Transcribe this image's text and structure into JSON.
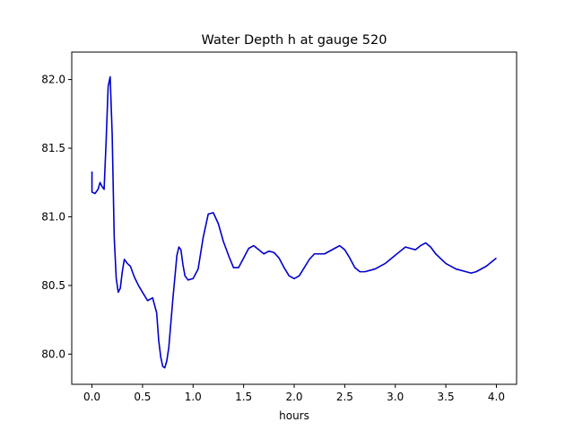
{
  "chart_data": {
    "type": "line",
    "title": "Water Depth h at gauge 520",
    "xlabel": "hours",
    "ylabel": "",
    "xlim": [
      -0.2,
      4.2
    ],
    "ylim": [
      79.78,
      82.2
    ],
    "xticks": [
      0.0,
      0.5,
      1.0,
      1.5,
      2.0,
      2.5,
      3.0,
      3.5,
      4.0
    ],
    "xtick_labels": [
      "0.0",
      "0.5",
      "1.0",
      "1.5",
      "2.0",
      "2.5",
      "3.0",
      "3.5",
      "4.0"
    ],
    "yticks": [
      80.0,
      80.5,
      81.0,
      81.5,
      82.0
    ],
    "ytick_labels": [
      "80.0",
      "80.5",
      "81.0",
      "81.5",
      "82.0"
    ],
    "grid": false,
    "series": [
      {
        "color": "#0000cc",
        "x": [
          0.0,
          0.0,
          0.03,
          0.06,
          0.08,
          0.1,
          0.12,
          0.14,
          0.16,
          0.18,
          0.2,
          0.22,
          0.24,
          0.26,
          0.28,
          0.3,
          0.32,
          0.35,
          0.38,
          0.42,
          0.46,
          0.5,
          0.55,
          0.6,
          0.64,
          0.66,
          0.68,
          0.7,
          0.72,
          0.74,
          0.76,
          0.8,
          0.84,
          0.86,
          0.88,
          0.9,
          0.92,
          0.95,
          1.0,
          1.05,
          1.1,
          1.15,
          1.2,
          1.25,
          1.3,
          1.35,
          1.4,
          1.45,
          1.5,
          1.55,
          1.6,
          1.65,
          1.7,
          1.75,
          1.8,
          1.85,
          1.9,
          1.95,
          2.0,
          2.05,
          2.1,
          2.15,
          2.2,
          2.3,
          2.4,
          2.45,
          2.5,
          2.55,
          2.6,
          2.65,
          2.7,
          2.8,
          2.9,
          3.0,
          3.05,
          3.1,
          3.15,
          3.2,
          3.25,
          3.3,
          3.35,
          3.4,
          3.5,
          3.6,
          3.7,
          3.75,
          3.8,
          3.9,
          4.0
        ],
        "values": [
          81.33,
          81.18,
          81.17,
          81.2,
          81.25,
          81.22,
          81.2,
          81.55,
          81.95,
          82.02,
          81.6,
          80.85,
          80.55,
          80.45,
          80.48,
          80.6,
          80.69,
          80.66,
          80.64,
          80.56,
          80.5,
          80.45,
          80.39,
          80.41,
          80.3,
          80.1,
          79.98,
          79.91,
          79.9,
          79.95,
          80.05,
          80.4,
          80.72,
          80.78,
          80.76,
          80.65,
          80.57,
          80.54,
          80.55,
          80.62,
          80.85,
          81.02,
          81.03,
          80.95,
          80.82,
          80.72,
          80.63,
          80.63,
          80.7,
          80.77,
          80.79,
          80.76,
          80.73,
          80.75,
          80.74,
          80.7,
          80.63,
          80.57,
          80.55,
          80.57,
          80.63,
          80.69,
          80.73,
          80.73,
          80.77,
          80.79,
          80.76,
          80.7,
          80.63,
          80.6,
          80.6,
          80.62,
          80.66,
          80.72,
          80.75,
          80.78,
          80.77,
          80.76,
          80.79,
          80.81,
          80.78,
          80.73,
          80.66,
          80.62,
          80.6,
          80.59,
          80.6,
          80.64,
          80.7
        ]
      }
    ]
  }
}
